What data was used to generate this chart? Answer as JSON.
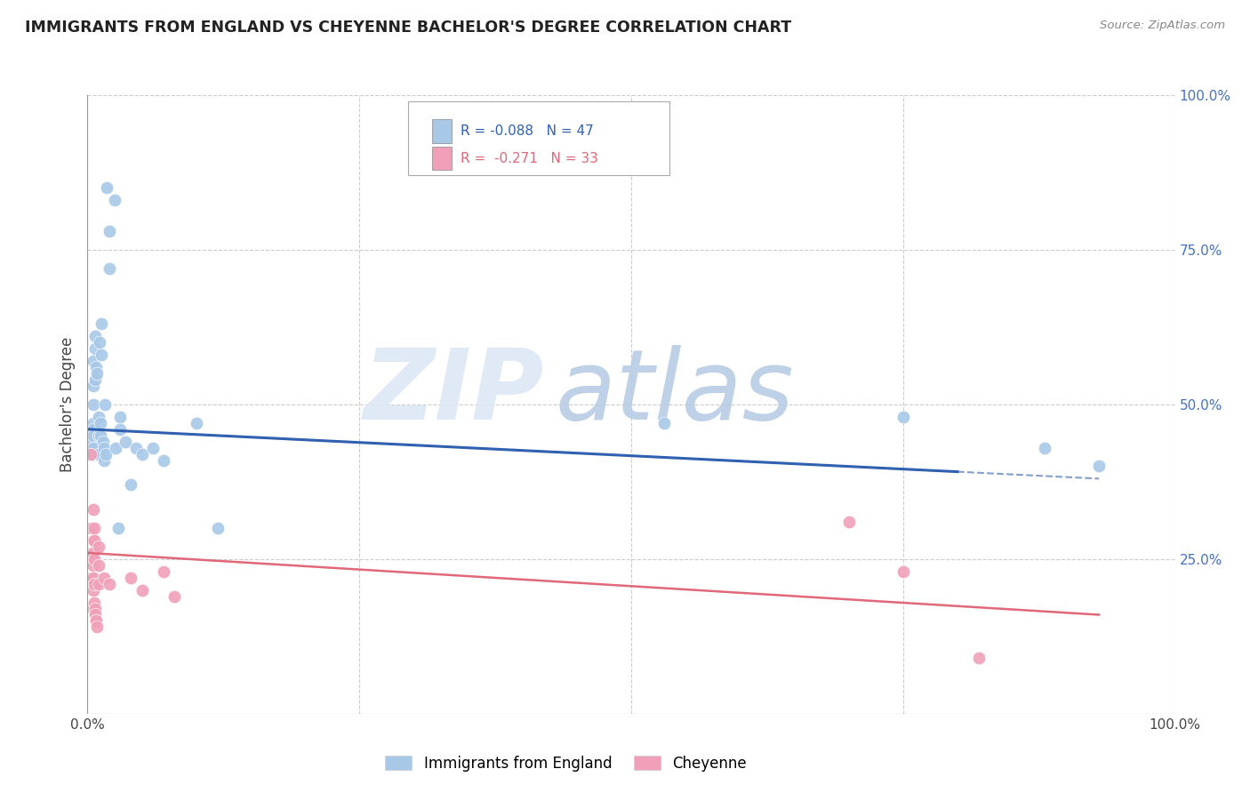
{
  "title": "IMMIGRANTS FROM ENGLAND VS CHEYENNE BACHELOR'S DEGREE CORRELATION CHART",
  "source": "Source: ZipAtlas.com",
  "ylabel": "Bachelor's Degree",
  "xlim": [
    0.0,
    100.0
  ],
  "ylim": [
    0.0,
    100.0
  ],
  "yticks": [
    0.0,
    25.0,
    50.0,
    75.0,
    100.0
  ],
  "xticks": [
    0.0,
    25.0,
    50.0,
    75.0,
    100.0
  ],
  "legend_blue_r": "R = -0.088",
  "legend_blue_n": "N = 47",
  "legend_pink_r": "R =  -0.271",
  "legend_pink_n": "N = 33",
  "legend_series1": "Immigrants from England",
  "legend_series2": "Cheyenne",
  "blue_color": "#a8c8e8",
  "pink_color": "#f0a0b8",
  "blue_line_color": "#3060b0",
  "pink_line_color": "#e06878",
  "blue_scatter": [
    [
      0.5,
      47
    ],
    [
      0.5,
      44
    ],
    [
      0.5,
      50
    ],
    [
      0.5,
      46
    ],
    [
      0.5,
      53
    ],
    [
      0.5,
      57
    ],
    [
      0.5,
      45
    ],
    [
      0.5,
      42
    ],
    [
      0.5,
      43
    ],
    [
      0.7,
      59
    ],
    [
      0.7,
      61
    ],
    [
      0.7,
      54
    ],
    [
      0.8,
      56
    ],
    [
      0.9,
      55
    ],
    [
      1.0,
      45
    ],
    [
      1.0,
      48
    ],
    [
      1.0,
      42
    ],
    [
      1.1,
      60
    ],
    [
      1.2,
      45
    ],
    [
      1.2,
      47
    ],
    [
      1.3,
      63
    ],
    [
      1.3,
      58
    ],
    [
      1.4,
      44
    ],
    [
      1.5,
      43
    ],
    [
      1.5,
      41
    ],
    [
      1.6,
      50
    ],
    [
      1.7,
      42
    ],
    [
      1.8,
      85
    ],
    [
      2.0,
      78
    ],
    [
      2.0,
      72
    ],
    [
      2.5,
      83
    ],
    [
      2.6,
      43
    ],
    [
      2.8,
      30
    ],
    [
      3.0,
      48
    ],
    [
      3.0,
      46
    ],
    [
      3.5,
      44
    ],
    [
      4.0,
      37
    ],
    [
      4.5,
      43
    ],
    [
      5.0,
      42
    ],
    [
      6.0,
      43
    ],
    [
      7.0,
      41
    ],
    [
      10.0,
      47
    ],
    [
      12.0,
      30
    ],
    [
      53.0,
      47
    ],
    [
      75.0,
      48
    ],
    [
      88.0,
      43
    ],
    [
      93.0,
      40
    ]
  ],
  "pink_scatter": [
    [
      0.3,
      42
    ],
    [
      0.4,
      30
    ],
    [
      0.4,
      26
    ],
    [
      0.4,
      22
    ],
    [
      0.5,
      33
    ],
    [
      0.5,
      28
    ],
    [
      0.5,
      26
    ],
    [
      0.5,
      24
    ],
    [
      0.5,
      22
    ],
    [
      0.5,
      20
    ],
    [
      0.5,
      17
    ],
    [
      0.6,
      30
    ],
    [
      0.6,
      28
    ],
    [
      0.6,
      25
    ],
    [
      0.6,
      21
    ],
    [
      0.6,
      18
    ],
    [
      0.7,
      17
    ],
    [
      0.7,
      16
    ],
    [
      0.8,
      15
    ],
    [
      0.8,
      15
    ],
    [
      0.9,
      14
    ],
    [
      1.0,
      27
    ],
    [
      1.0,
      24
    ],
    [
      1.0,
      21
    ],
    [
      1.5,
      22
    ],
    [
      2.0,
      21
    ],
    [
      4.0,
      22
    ],
    [
      5.0,
      20
    ],
    [
      7.0,
      23
    ],
    [
      8.0,
      19
    ],
    [
      70.0,
      31
    ],
    [
      75.0,
      23
    ],
    [
      82.0,
      9
    ]
  ],
  "blue_trend_x": [
    0.0,
    93.0
  ],
  "blue_trend_y": [
    46.0,
    38.0
  ],
  "blue_trend_solid_end": 80.0,
  "pink_trend_x": [
    0.0,
    93.0
  ],
  "pink_trend_y": [
    26.0,
    16.0
  ],
  "watermark_zip": "ZIP",
  "watermark_atlas": "atlas",
  "background_color": "#ffffff",
  "grid_color": "#cccccc"
}
